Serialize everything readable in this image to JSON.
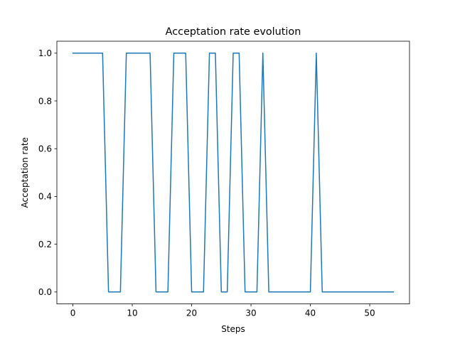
{
  "chart_data": {
    "type": "line",
    "title": "Acceptation rate evolution",
    "xlabel": "Steps",
    "ylabel": "Acceptation rate",
    "xlim": [
      -2.7,
      56.7
    ],
    "ylim": [
      -0.05,
      1.05
    ],
    "xticks": [
      0,
      10,
      20,
      30,
      40,
      50
    ],
    "xtick_labels": [
      "0",
      "10",
      "20",
      "30",
      "40",
      "50"
    ],
    "yticks": [
      0.0,
      0.2,
      0.4,
      0.6,
      0.8,
      1.0
    ],
    "ytick_labels": [
      "0.0",
      "0.2",
      "0.4",
      "0.6",
      "0.8",
      "1.0"
    ],
    "grid": false,
    "series": [
      {
        "color": "#1f77b4",
        "x": [
          0,
          1,
          2,
          3,
          4,
          5,
          6,
          7,
          8,
          9,
          10,
          11,
          12,
          13,
          14,
          15,
          16,
          17,
          18,
          19,
          20,
          21,
          22,
          23,
          24,
          25,
          26,
          27,
          28,
          29,
          30,
          31,
          32,
          33,
          34,
          35,
          36,
          37,
          38,
          39,
          40,
          41,
          42,
          43,
          44,
          45,
          46,
          47,
          48,
          49,
          50,
          51,
          52,
          53,
          54
        ],
        "y": [
          1,
          1,
          1,
          1,
          1,
          1,
          0,
          0,
          0,
          1,
          1,
          1,
          1,
          1,
          0,
          0,
          0,
          1,
          1,
          1,
          0,
          0,
          0,
          1,
          1,
          0,
          0,
          1,
          1,
          0,
          0,
          0,
          1,
          0,
          0,
          0,
          0,
          0,
          0,
          0,
          0,
          1,
          0,
          0,
          0,
          0,
          0,
          0,
          0,
          0,
          0,
          0,
          0,
          0,
          0
        ]
      }
    ]
  }
}
